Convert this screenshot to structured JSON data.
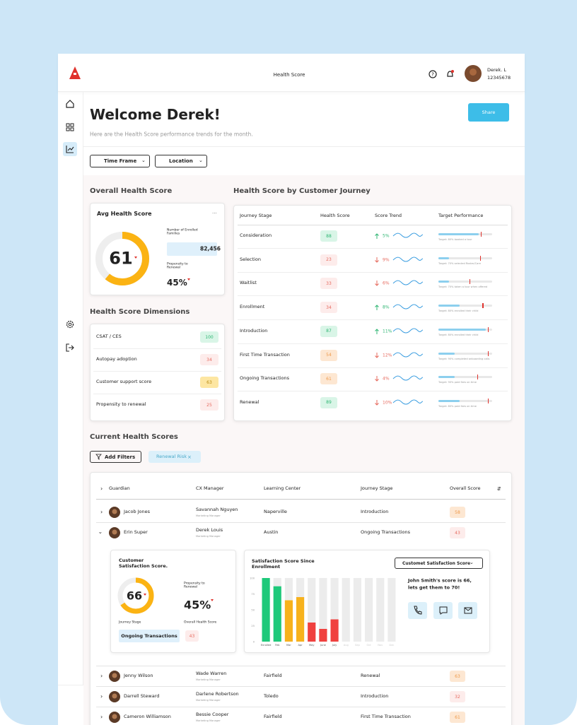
{
  "header": {
    "title": "Health Score",
    "user_name": "Derek. L",
    "user_id": "12345678"
  },
  "welcome": {
    "title": "Welcome Derek!",
    "subtitle": "Here are the Health Score performance trends for the month.",
    "share": "Share"
  },
  "filters": [
    "Time Frame",
    "Location"
  ],
  "overall": {
    "section": "Overall Health Score",
    "card_title": "Avg Health Score",
    "menu": "...",
    "score": 61,
    "families_label": "Number of Enrolled Families",
    "families": "82,456",
    "renewal_label": "Propensity to Renewal",
    "renewal": "45%"
  },
  "dimensions": {
    "title": "Health Score Dimensions",
    "rows": [
      {
        "name": "CSAT / CES",
        "score": 100,
        "tone": "green"
      },
      {
        "name": "Autopay adoption",
        "score": 34,
        "tone": "red"
      },
      {
        "name": "Customer support score",
        "score": 63,
        "tone": "yellow"
      },
      {
        "name": "Propensity to renewal",
        "score": 25,
        "tone": "red"
      }
    ]
  },
  "journey": {
    "title": "Health Score by Customer Journey",
    "columns": [
      "Journey Stage",
      "Health Score",
      "Score Trend",
      "Target Performance"
    ],
    "rows": [
      {
        "stage": "Consideration",
        "score": 88,
        "tone": "green",
        "trend": "5%",
        "direction": "up",
        "progress": 75,
        "target": 79,
        "target_label": "Target: 80% booked a tour"
      },
      {
        "stage": "Selection",
        "score": 23,
        "tone": "red",
        "trend": "9%",
        "direction": "down",
        "progress": 20,
        "target": 78,
        "target_label": "Target: 70% selected Roster/Care"
      },
      {
        "stage": "Waitlist",
        "score": 33,
        "tone": "red",
        "trend": "6%",
        "direction": "down",
        "progress": 20,
        "target": 58,
        "target_label": "Target: 70% taken a tour when offered"
      },
      {
        "stage": "Enrollment",
        "score": 34,
        "tone": "red",
        "trend": "8%",
        "direction": "up",
        "progress": 40,
        "target": 82,
        "target_label": "Target: 80% enrolled their child"
      },
      {
        "stage": "Introduction",
        "score": 87,
        "tone": "green",
        "trend": "11%",
        "direction": "up",
        "progress": 88,
        "target": 92,
        "target_label": "Target: 80% enrolled their child"
      },
      {
        "stage": "First Time Transaction",
        "score": 54,
        "tone": "orange",
        "trend": "12%",
        "direction": "down",
        "progress": 30,
        "target": 92,
        "target_label": "Target: 90% completed onboarding calls"
      },
      {
        "stage": "Ongoing Transactions",
        "score": 61,
        "tone": "orange",
        "trend": "4%",
        "direction": "down",
        "progress": 30,
        "target": 72,
        "target_label": "Target: 90% paid fees on time"
      },
      {
        "stage": "Renewal",
        "score": 89,
        "tone": "green",
        "trend": "10%",
        "direction": "down",
        "progress": 40,
        "target": 92,
        "target_label": "Target: 80% paid fees on time"
      }
    ]
  },
  "current": {
    "title": "Current Health Scores",
    "add_filters": "Add Filters",
    "chip": "Renewal Risk",
    "chip_close": "×",
    "columns": [
      "Guardian",
      "CX Manager",
      "Learning Center",
      "Journey Stage",
      "Overall Score"
    ],
    "rows": [
      {
        "guardian": "Jacob Jones",
        "cx": "Savannah Nguyen",
        "cx_title": "Marketing Manager",
        "center": "Naperville",
        "stage": "Introduction",
        "score": 58,
        "tone": "orange"
      },
      {
        "guardian": "Erin Super",
        "cx": "Derek Louis",
        "cx_title": "Marketing Manager",
        "center": "Austin",
        "stage": "Ongoing Transactions",
        "score": 43,
        "tone": "red"
      },
      {
        "guardian": "Jenny Wilson",
        "cx": "Wade Warren",
        "cx_title": "Marketing Manager",
        "center": "Fairfield",
        "stage": "Renewal",
        "score": 63,
        "tone": "orange"
      },
      {
        "guardian": "Darrell Steward",
        "cx": "Darlene Robertson",
        "cx_title": "Marketing Manager",
        "center": "Toledo",
        "stage": "Introduction",
        "score": 32,
        "tone": "red"
      },
      {
        "guardian": "Cameron Williamson",
        "cx": "Bessie Cooper",
        "cx_title": "Marketing Manager",
        "center": "Fairfield",
        "stage": "First Time Transaction",
        "score": 61,
        "tone": "orange"
      }
    ]
  },
  "expanded": {
    "card_title": "Customer Satisfaction Score.",
    "score": 66,
    "renewal_label": "Propensity to Renewal",
    "renewal": "45%",
    "stage_label": "Journey Stage",
    "health_label": "Overall Health Score",
    "stage": "Ongoing Transactions",
    "health": 43,
    "health_tone": "red",
    "chart": {
      "type": "bar",
      "title": "Satisfaction Score Since Enrollment",
      "categories": [
        "Enrolled",
        "Feb",
        "Mar",
        "Apr",
        "May",
        "June",
        "July",
        "Aug",
        "Sep",
        "Oct",
        "Nov",
        "Dec"
      ],
      "values": [
        100,
        87,
        65,
        70,
        30,
        20,
        35,
        null,
        null,
        null,
        null,
        null
      ],
      "colors": [
        "#1ec97a",
        "#1ec97a",
        "#f7b21d",
        "#f7b21d",
        "#f0413f",
        "#f0413f",
        "#f0413f",
        null,
        null,
        null,
        null,
        null
      ],
      "ylim": [
        0,
        100
      ],
      "yticks": [
        0,
        25,
        50,
        75,
        100
      ]
    },
    "dropdown": "Customet Satisfaction Score",
    "message": "John Smith's score is 66, lets get them to 70!"
  }
}
